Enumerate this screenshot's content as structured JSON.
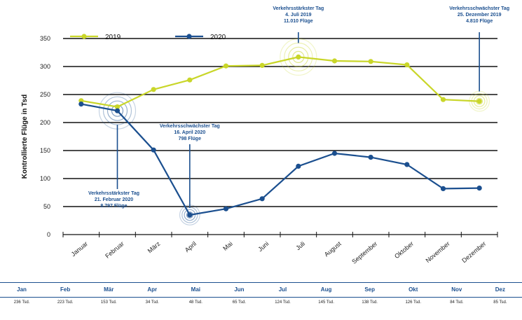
{
  "chart_data": {
    "type": "line",
    "ylabel": "Kontrollierte Flüge in Tsd",
    "ylim": [
      0,
      3000
    ],
    "yticks": [
      0,
      500,
      1000,
      1500,
      2000,
      2500,
      3000,
      3500
    ],
    "ytick_labels": [
      "0",
      "50",
      "100",
      "150",
      "200",
      "250",
      "300",
      "350"
    ],
    "categories": [
      "Januar",
      "Februar",
      "März",
      "April",
      "Mai",
      "Juni",
      "Juli",
      "August",
      "September",
      "Oktober",
      "November",
      "Dezember"
    ],
    "series": [
      {
        "name": "2019",
        "color": "#c9d629",
        "values": [
          2390,
          2280,
          2590,
          2760,
          3010,
          3020,
          3170,
          3100,
          3090,
          3030,
          2410,
          2380
        ]
      },
      {
        "name": "2020",
        "color": "#1b4f8f",
        "values": [
          2330,
          2210,
          1510,
          350,
          460,
          640,
          1220,
          1450,
          1380,
          1250,
          820,
          830
        ]
      }
    ],
    "annotations": [
      {
        "series": "2019",
        "index": 6,
        "lines": [
          "Verkehrsstärkster Tag",
          "4. Juli 2019",
          "11.010 Flüge"
        ]
      },
      {
        "series": "2019",
        "index": 11,
        "lines": [
          "Verkehrsschwächster Tag",
          "25. Dezember 2019",
          "4.810 Flüge"
        ]
      },
      {
        "series": "2020",
        "index": 3,
        "lines": [
          "Verkehrsschwächster Tag",
          "16. April 2020",
          "798 Flüge"
        ]
      },
      {
        "series": "2020",
        "index": 1,
        "lines": [
          "Verkehrsstärkster Tag",
          "21. Februar 2020",
          "8.797 Flüge"
        ]
      }
    ],
    "grid": true,
    "legend": "top-left"
  },
  "table": {
    "months": [
      "Jan",
      "Feb",
      "Mär",
      "Apr",
      "Mai",
      "Jun",
      "Jul",
      "Aug",
      "Sep",
      "Okt",
      "Nov",
      "Dez"
    ],
    "values": [
      "236 Tsd.",
      "223 Tsd.",
      "153 Tsd.",
      "34 Tsd.",
      "48 Tsd.",
      "65 Tsd.",
      "124 Tsd.",
      "145 Tsd.",
      "138 Tsd.",
      "126 Tsd.",
      "84 Tsd.",
      "85 Tsd."
    ]
  }
}
